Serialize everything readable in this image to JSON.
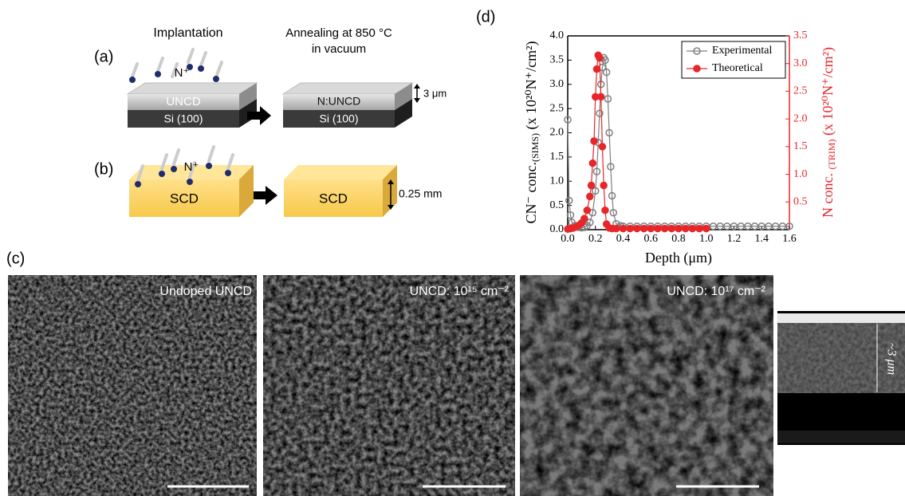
{
  "panel_labels": [
    "(a)",
    "(b)",
    "(c)",
    "(d)"
  ],
  "panel_a": {
    "step1": "Implantation",
    "ion": "N⁺",
    "layer": "UNCD",
    "substrate": "Si (100)",
    "step2_line1": "Annealing at 850 °C",
    "step2_line2": "in vacuum",
    "layer2": "N:UNCD",
    "substrate2": "Si (100)",
    "thickness": "3 μm"
  },
  "panel_b": {
    "ion": "N⁺",
    "block": "SCD",
    "block2": "SCD",
    "thickness": "0.25 mm"
  },
  "panel_c": {
    "images": [
      {
        "caption": "Undoped UNCD"
      },
      {
        "caption": "UNCD: 10¹⁵ cm⁻²"
      },
      {
        "caption": "UNCD: 10¹⁷ cm⁻²"
      },
      {
        "caption": "~3 μm"
      }
    ]
  },
  "chart_data": {
    "type": "line",
    "x_label": "Depth (μm)",
    "y_label": [
      "CN⁻ conc.",
      "(SIMS)",
      " (x 10²⁰N⁺/cm²)"
    ],
    "y2_label": [
      "N conc. ",
      "(TRIM)",
      " (x 10²⁰N⁺/cm²)"
    ],
    "xlim": [
      0,
      1.6
    ],
    "xticks": [
      {
        "value": 0,
        "label": "0.0"
      },
      0.2,
      0.4,
      0.6,
      0.8,
      {
        "value": 1,
        "label": "1.0"
      },
      1.2,
      1.4,
      1.6
    ],
    "ylim": [
      0,
      4
    ],
    "yticks": [
      {
        "value": 0,
        "label": "0.0"
      },
      0.5,
      {
        "value": 1,
        "label": "1.0"
      },
      1.5,
      {
        "value": 2,
        "label": "2.0"
      },
      2.5,
      {
        "value": 3,
        "label": "3.0"
      },
      3.5,
      {
        "value": 4,
        "label": "4.0"
      }
    ],
    "y2lim": [
      0,
      3.5
    ],
    "y2ticks": [
      0.5,
      {
        "value": 1,
        "label": "1.0"
      },
      1.5,
      {
        "value": 2,
        "label": "2.0"
      },
      2.5,
      {
        "value": 3,
        "label": "3.0"
      },
      3.5
    ],
    "y2_color": "#e8262a",
    "legend": "top-right",
    "series": [
      {
        "name": "Experimental",
        "color": "#7f7f7f",
        "marker": "open-circle",
        "x": [
          0,
          0.01,
          0.02,
          0.03,
          0.05,
          0.08,
          0.1,
          0.12,
          0.14,
          0.16,
          0.18,
          0.2,
          0.21,
          0.22,
          0.23,
          0.24,
          0.25,
          0.26,
          0.27,
          0.28,
          0.29,
          0.3,
          0.31,
          0.32,
          0.33,
          0.35,
          0.38,
          0.4,
          0.45,
          0.5,
          0.55,
          0.6,
          0.65,
          0.7,
          0.75,
          0.8,
          0.85,
          0.9,
          0.95,
          1,
          1.05,
          1.1,
          1.15,
          1.2,
          1.25,
          1.3,
          1.35,
          1.4,
          1.45,
          1.5,
          1.55,
          1.6
        ],
        "values": [
          2.27,
          0.6,
          0.3,
          0.15,
          0.08,
          0.05,
          0.04,
          0.05,
          0.08,
          0.15,
          0.35,
          0.8,
          1.2,
          1.8,
          2.4,
          3.0,
          3.35,
          3.55,
          3.5,
          3.25,
          2.7,
          2.0,
          1.3,
          0.7,
          0.35,
          0.12,
          0.08,
          0.07,
          0.07,
          0.07,
          0.07,
          0.07,
          0.07,
          0.07,
          0.07,
          0.07,
          0.07,
          0.07,
          0.07,
          0.07,
          0.07,
          0.07,
          0.07,
          0.07,
          0.07,
          0.07,
          0.07,
          0.07,
          0.07,
          0.07,
          0.07,
          0.07
        ]
      },
      {
        "name": "Theoretical",
        "color": "#e8262a",
        "marker": "filled-circle",
        "axis": "y2",
        "x": [
          0,
          0.02,
          0.04,
          0.06,
          0.08,
          0.1,
          0.12,
          0.14,
          0.16,
          0.17,
          0.18,
          0.19,
          0.2,
          0.21,
          0.22,
          0.23,
          0.24,
          0.25,
          0.26,
          0.27,
          0.28,
          0.3,
          0.32,
          0.35,
          0.4,
          0.45,
          0.5,
          0.55,
          0.6,
          0.65,
          0.7,
          0.75,
          0.8,
          0.85,
          0.9,
          0.95,
          1
        ],
        "values": [
          0.01,
          0.02,
          0.03,
          0.05,
          0.08,
          0.12,
          0.2,
          0.35,
          0.6,
          0.8,
          1.2,
          1.6,
          2.4,
          2.9,
          3.15,
          3.1,
          2.4,
          1.5,
          0.8,
          0.35,
          0.1,
          0.03,
          0.02,
          0.02,
          0.02,
          0.02,
          0.02,
          0.02,
          0.02,
          0.02,
          0.02,
          0.02,
          0.02,
          0.02,
          0.02,
          0.02,
          0.02
        ]
      }
    ]
  }
}
